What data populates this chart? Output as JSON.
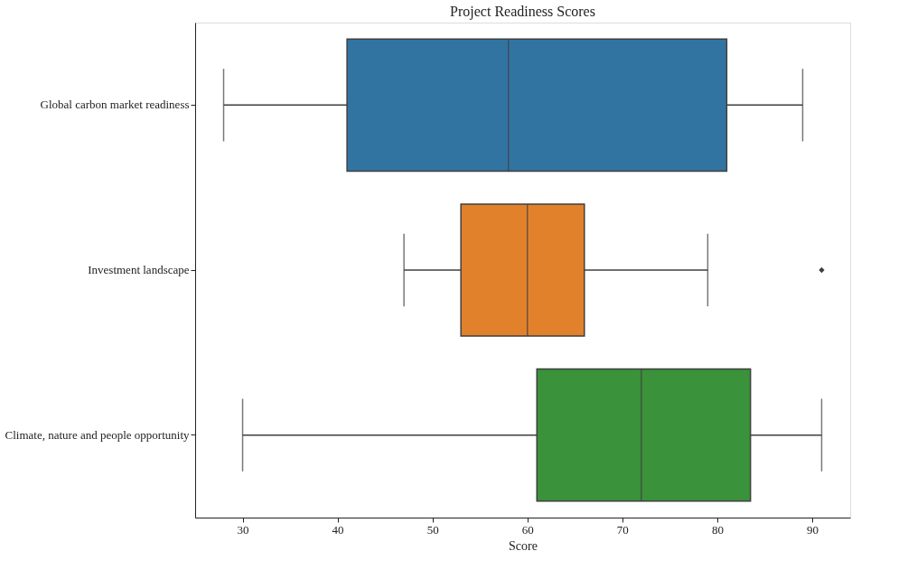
{
  "chart_data": {
    "type": "box",
    "orientation": "horizontal",
    "title": "Project Readiness Scores",
    "xlabel": "Score",
    "categories": [
      "Global carbon market readiness",
      "Investment landscape",
      "Climate, nature and people opportunity"
    ],
    "colors": [
      "#3274a1",
      "#e1812c",
      "#3a923a"
    ],
    "boxes": [
      {
        "low": 28,
        "q1": 41,
        "median": 58,
        "q3": 81,
        "high": 89
      },
      {
        "low": 47,
        "q1": 53,
        "median": 60,
        "q3": 66,
        "high": 79,
        "outliers": [
          91
        ]
      },
      {
        "low": 30,
        "q1": 61,
        "median": 72,
        "q3": 83.5,
        "high": 91
      }
    ],
    "xlim": [
      25,
      94
    ],
    "xticks": [
      30,
      40,
      50,
      60,
      70,
      80,
      90
    ],
    "grid": false
  }
}
